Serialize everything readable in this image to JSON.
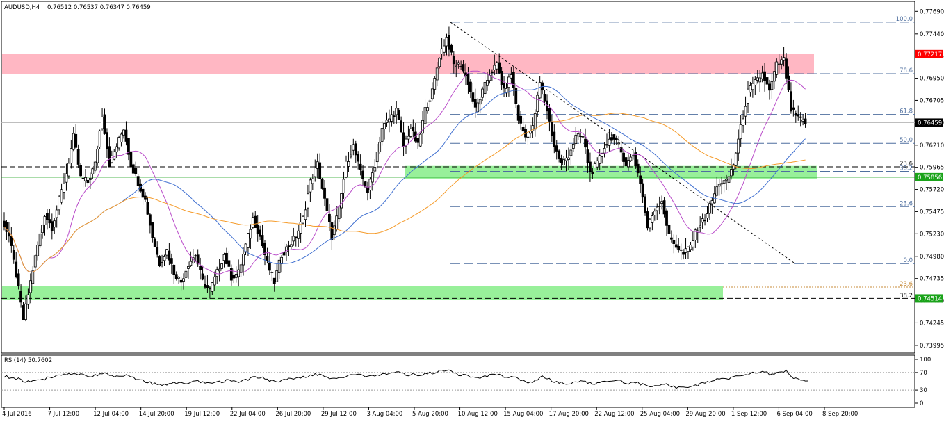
{
  "header": {
    "symbol_tf": "AUDUSD,H4",
    "ohlc": "0.76512 0.76537 0.76347 0.76459"
  },
  "rsi_header": "RSI(14) 50.7602",
  "colors": {
    "background": "#ffffff",
    "candle": "#000000",
    "ma_fast": "#b94bc9",
    "ma_mid": "#3f6fd0",
    "ma_slow": "#f59b2a",
    "resistance_zone": "#ffb7c3",
    "resistance_line": "#ff0000",
    "support_zone": "#98f09a",
    "support_line": "#1aa31a",
    "fib_line": "#4f6f9f",
    "red_badge": "#ff0000",
    "green_badge": "#1aa31a",
    "current_badge": "#000000",
    "rsi_line": "#000000"
  },
  "price_axis": {
    "labels": [
      "0.77690",
      "0.77440",
      "0.77195",
      "0.76950",
      "0.76705",
      "0.76459",
      "0.76210",
      "0.75965",
      "0.75720",
      "0.75475",
      "0.75230",
      "0.74980",
      "0.74735",
      "0.74490",
      "0.74245",
      "0.73995"
    ],
    "badges": {
      "resistance": "0.77217",
      "current": "0.76459",
      "support_upper": "0.75856",
      "support_lower": "0.74514"
    }
  },
  "time_axis": {
    "labels": [
      "4 Jul 2016",
      "7 Jul 12:00",
      "12 Jul 04:00",
      "14 Jul 20:00",
      "19 Jul 12:00",
      "22 Jul 04:00",
      "26 Jul 20:00",
      "29 Jul 12:00",
      "3 Aug 04:00",
      "5 Aug 20:00",
      "10 Aug 12:00",
      "15 Aug 04:00",
      "17 Aug 20:00",
      "22 Aug 12:00",
      "25 Aug 04:00",
      "29 Aug 20:00",
      "1 Sep 12:00",
      "6 Sep 04:00",
      "8 Sep 20:00"
    ]
  },
  "fibonacci_upper": {
    "levels": [
      "100.0",
      "78.6",
      "61.8",
      "50.0",
      "38.2",
      "23.6",
      "0.0"
    ]
  },
  "fibonacci_lower": {
    "levels": [
      "23.6",
      "38.2"
    ]
  },
  "fib_right_23_6": "23.6",
  "rsi_axis": {
    "labels": [
      "100",
      "70",
      "30",
      "0"
    ]
  },
  "chart_data": {
    "type": "candlestick",
    "title": "AUDUSD,H4",
    "subtitle": "0.76512 0.76537 0.76347 0.76459",
    "ylim": [
      0.7391,
      0.778
    ],
    "horizontal_levels": {
      "resistance_zone": [
        0.77,
        0.7722
      ],
      "support_zone_upper": [
        0.7584,
        0.7598
      ],
      "support_zone_lower": [
        0.745,
        0.7465
      ],
      "current_price": 0.76459
    },
    "fibonacci_upper_swing": {
      "high": 0.7757,
      "low": 0.749,
      "levels": {
        "100.0": 0.7757,
        "78.6": 0.77,
        "61.8": 0.7655,
        "50.0": 0.7623,
        "38.2": 0.7592,
        "23.6": 0.7553,
        "0.0": 0.749
      }
    },
    "fibonacci_lower_levels": {
      "23.6": 0.7464,
      "38.2": 0.7451
    },
    "trendline": {
      "from": 0.7757,
      "to": 0.7491
    },
    "price_path": [
      0.754,
      0.752,
      0.7478,
      0.7428,
      0.747,
      0.751,
      0.7545,
      0.753,
      0.756,
      0.759,
      0.763,
      0.7585,
      0.758,
      0.76,
      0.7655,
      0.76,
      0.762,
      0.764,
      0.76,
      0.758,
      0.756,
      0.752,
      0.749,
      0.7505,
      0.748,
      0.747,
      0.749,
      0.75,
      0.747,
      0.746,
      0.748,
      0.75,
      0.7475,
      0.748,
      0.751,
      0.754,
      0.752,
      0.749,
      0.747,
      0.75,
      0.751,
      0.752,
      0.754,
      0.758,
      0.76,
      0.756,
      0.752,
      0.755,
      0.76,
      0.762,
      0.759,
      0.757,
      0.76,
      0.764,
      0.765,
      0.766,
      0.762,
      0.764,
      0.762,
      0.766,
      0.768,
      0.772,
      0.774,
      0.771,
      0.771,
      0.769,
      0.766,
      0.768,
      0.77,
      0.771,
      0.768,
      0.77,
      0.765,
      0.763,
      0.764,
      0.769,
      0.766,
      0.762,
      0.76,
      0.761,
      0.763,
      0.763,
      0.759,
      0.76,
      0.762,
      0.763,
      0.762,
      0.76,
      0.761,
      0.758,
      0.753,
      0.755,
      0.756,
      0.752,
      0.751,
      0.75,
      0.751,
      0.753,
      0.754,
      0.756,
      0.758,
      0.758,
      0.76,
      0.764,
      0.768,
      0.769,
      0.77,
      0.768,
      0.771,
      0.7715,
      0.766,
      0.765,
      0.7646
    ],
    "rsi": {
      "period": 14,
      "last": 50.7602,
      "levels": [
        70,
        30
      ],
      "ylim": [
        0,
        100
      ],
      "values": [
        62,
        58,
        55,
        48,
        50,
        54,
        57,
        60,
        63,
        66,
        68,
        64,
        62,
        65,
        70,
        63,
        60,
        66,
        58,
        52,
        48,
        44,
        42,
        45,
        46,
        44,
        48,
        50,
        46,
        44,
        48,
        52,
        49,
        50,
        55,
        60,
        57,
        52,
        48,
        54,
        56,
        58,
        60,
        64,
        66,
        60,
        55,
        58,
        63,
        66,
        62,
        60,
        64,
        68,
        70,
        72,
        64,
        66,
        62,
        68,
        70,
        74,
        76,
        66,
        64,
        60,
        56,
        60,
        64,
        66,
        58,
        60,
        52,
        48,
        50,
        60,
        54,
        48,
        44,
        46,
        50,
        50,
        44,
        46,
        50,
        52,
        50,
        46,
        48,
        42,
        36,
        40,
        44,
        38,
        36,
        34,
        38,
        44,
        48,
        52,
        56,
        56,
        60,
        64,
        68,
        70,
        72,
        64,
        72,
        74,
        56,
        52,
        50.76
      ]
    },
    "moving_averages": [
      {
        "color": "#b94bc9"
      },
      {
        "color": "#3f6fd0"
      },
      {
        "color": "#f59b2a"
      }
    ]
  }
}
